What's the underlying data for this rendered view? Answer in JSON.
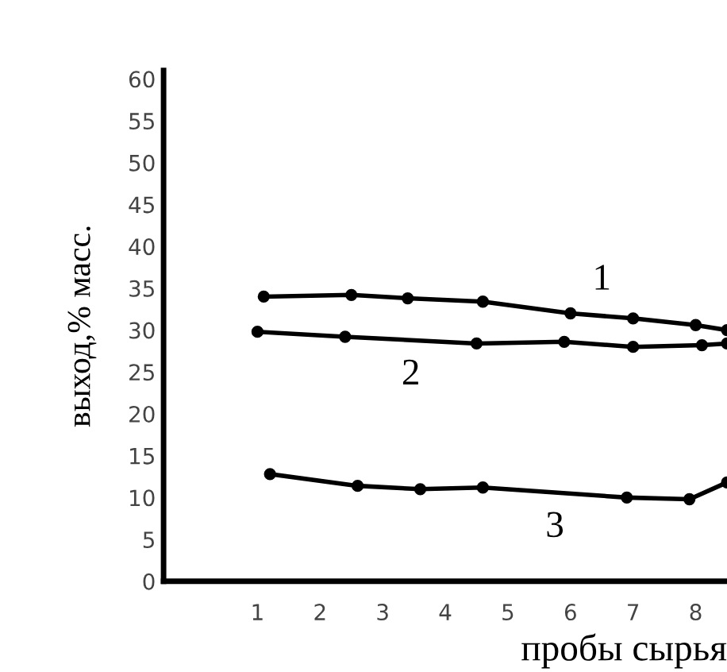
{
  "chart_data": {
    "type": "line",
    "xlabel": "пробы сырья",
    "ylabel": "выход,% масс.",
    "xlim": [
      -0.5,
      8.5
    ],
    "xticks": [
      1,
      2,
      3,
      4,
      5,
      6,
      7,
      8
    ],
    "ylim": [
      0,
      61
    ],
    "yticks": [
      0,
      5,
      10,
      15,
      20,
      25,
      30,
      35,
      40,
      45,
      50,
      55,
      60
    ],
    "grid": false,
    "legend": false,
    "marker": "circle",
    "line_style": "solid",
    "series": [
      {
        "name": "1",
        "color": "#000000",
        "x": [
          1.1,
          2.5,
          3.4,
          4.6,
          6.0,
          7.0,
          8.0,
          8.5
        ],
        "values": [
          34,
          34.2,
          33.8,
          33.4,
          32,
          31.4,
          30.6,
          30
        ]
      },
      {
        "name": "2",
        "color": "#000000",
        "x": [
          1.0,
          2.4,
          4.5,
          5.9,
          7.0,
          8.1,
          8.5
        ],
        "values": [
          29.8,
          29.2,
          28.4,
          28.6,
          28,
          28.2,
          28.4
        ]
      },
      {
        "name": "3",
        "color": "#000000",
        "x": [
          1.2,
          2.6,
          3.6,
          4.6,
          6.9,
          7.9,
          8.5
        ],
        "values": [
          12.8,
          11.4,
          11,
          11.2,
          10,
          9.8,
          11.8
        ]
      }
    ]
  }
}
